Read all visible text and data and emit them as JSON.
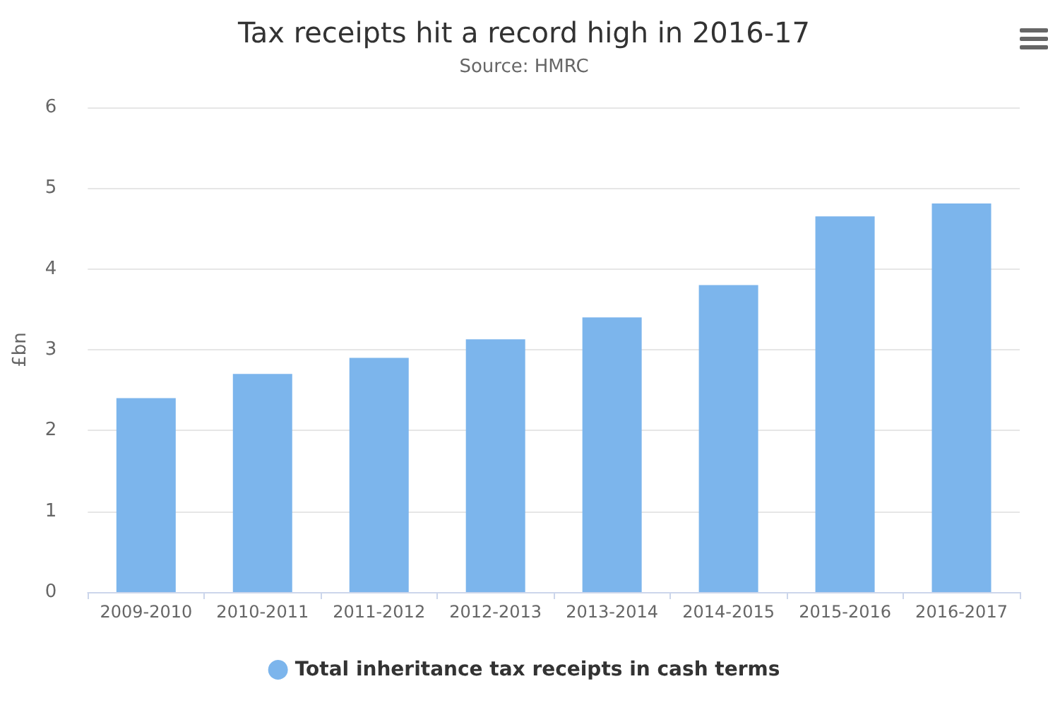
{
  "chart_data": {
    "type": "bar",
    "title": "Tax receipts hit a record high in 2016-17",
    "subtitle": "Source: HMRC",
    "ylabel": "£bn",
    "categories": [
      "2009-2010",
      "2010-2011",
      "2011-2012",
      "2012-2013",
      "2013-2014",
      "2014-2015",
      "2015-2016",
      "2016-2017"
    ],
    "series": [
      {
        "name": "Total inheritance tax receipts in cash terms",
        "color": "#7cb5ec",
        "values": [
          2.4,
          2.7,
          2.9,
          3.13,
          3.4,
          3.8,
          4.65,
          4.81
        ]
      }
    ],
    "ylim": [
      0,
      6
    ],
    "yticks": [
      0,
      1,
      2,
      3,
      4,
      5,
      6
    ],
    "grid": "y",
    "legend": "bottom"
  }
}
